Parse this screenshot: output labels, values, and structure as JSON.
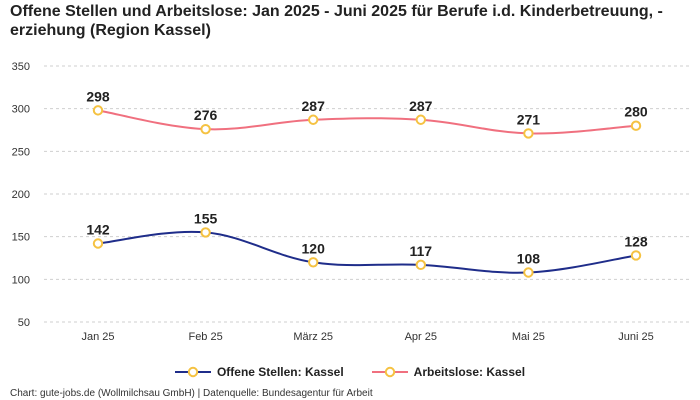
{
  "title": "Offene Stellen und Arbeitslose: Jan 2025 - Juni 2025 für Berufe i.d. Kinderbetreuung, -erziehung (Region Kassel)",
  "footer": "Chart: gute-jobs.de (Wollmilchsau GmbH) | Datenquelle: Bundesagentur für Arbeit",
  "chart_data": {
    "type": "line",
    "title": "Offene Stellen und Arbeitslose: Jan 2025 - Juni 2025 für Berufe i.d. Kinderbetreuung, -erziehung (Region Kassel)",
    "categories": [
      "Jan 25",
      "Feb 25",
      "März 25",
      "Apr 25",
      "Mai 25",
      "Juni 25"
    ],
    "series": [
      {
        "name": "Offene Stellen: Kassel",
        "values": [
          142,
          155,
          120,
          117,
          108,
          128
        ],
        "color": "#1f2d8a"
      },
      {
        "name": "Arbeitslose: Kassel",
        "values": [
          298,
          276,
          287,
          287,
          271,
          280
        ],
        "color": "#f0707f"
      }
    ],
    "marker_fill": "#ffffff",
    "marker_stroke": "#f5c242",
    "yticks": [
      50,
      100,
      150,
      200,
      250,
      300,
      350
    ],
    "ylim": [
      50,
      350
    ],
    "grid": true,
    "legend": "bottom-center",
    "xlabel": "",
    "ylabel": ""
  }
}
